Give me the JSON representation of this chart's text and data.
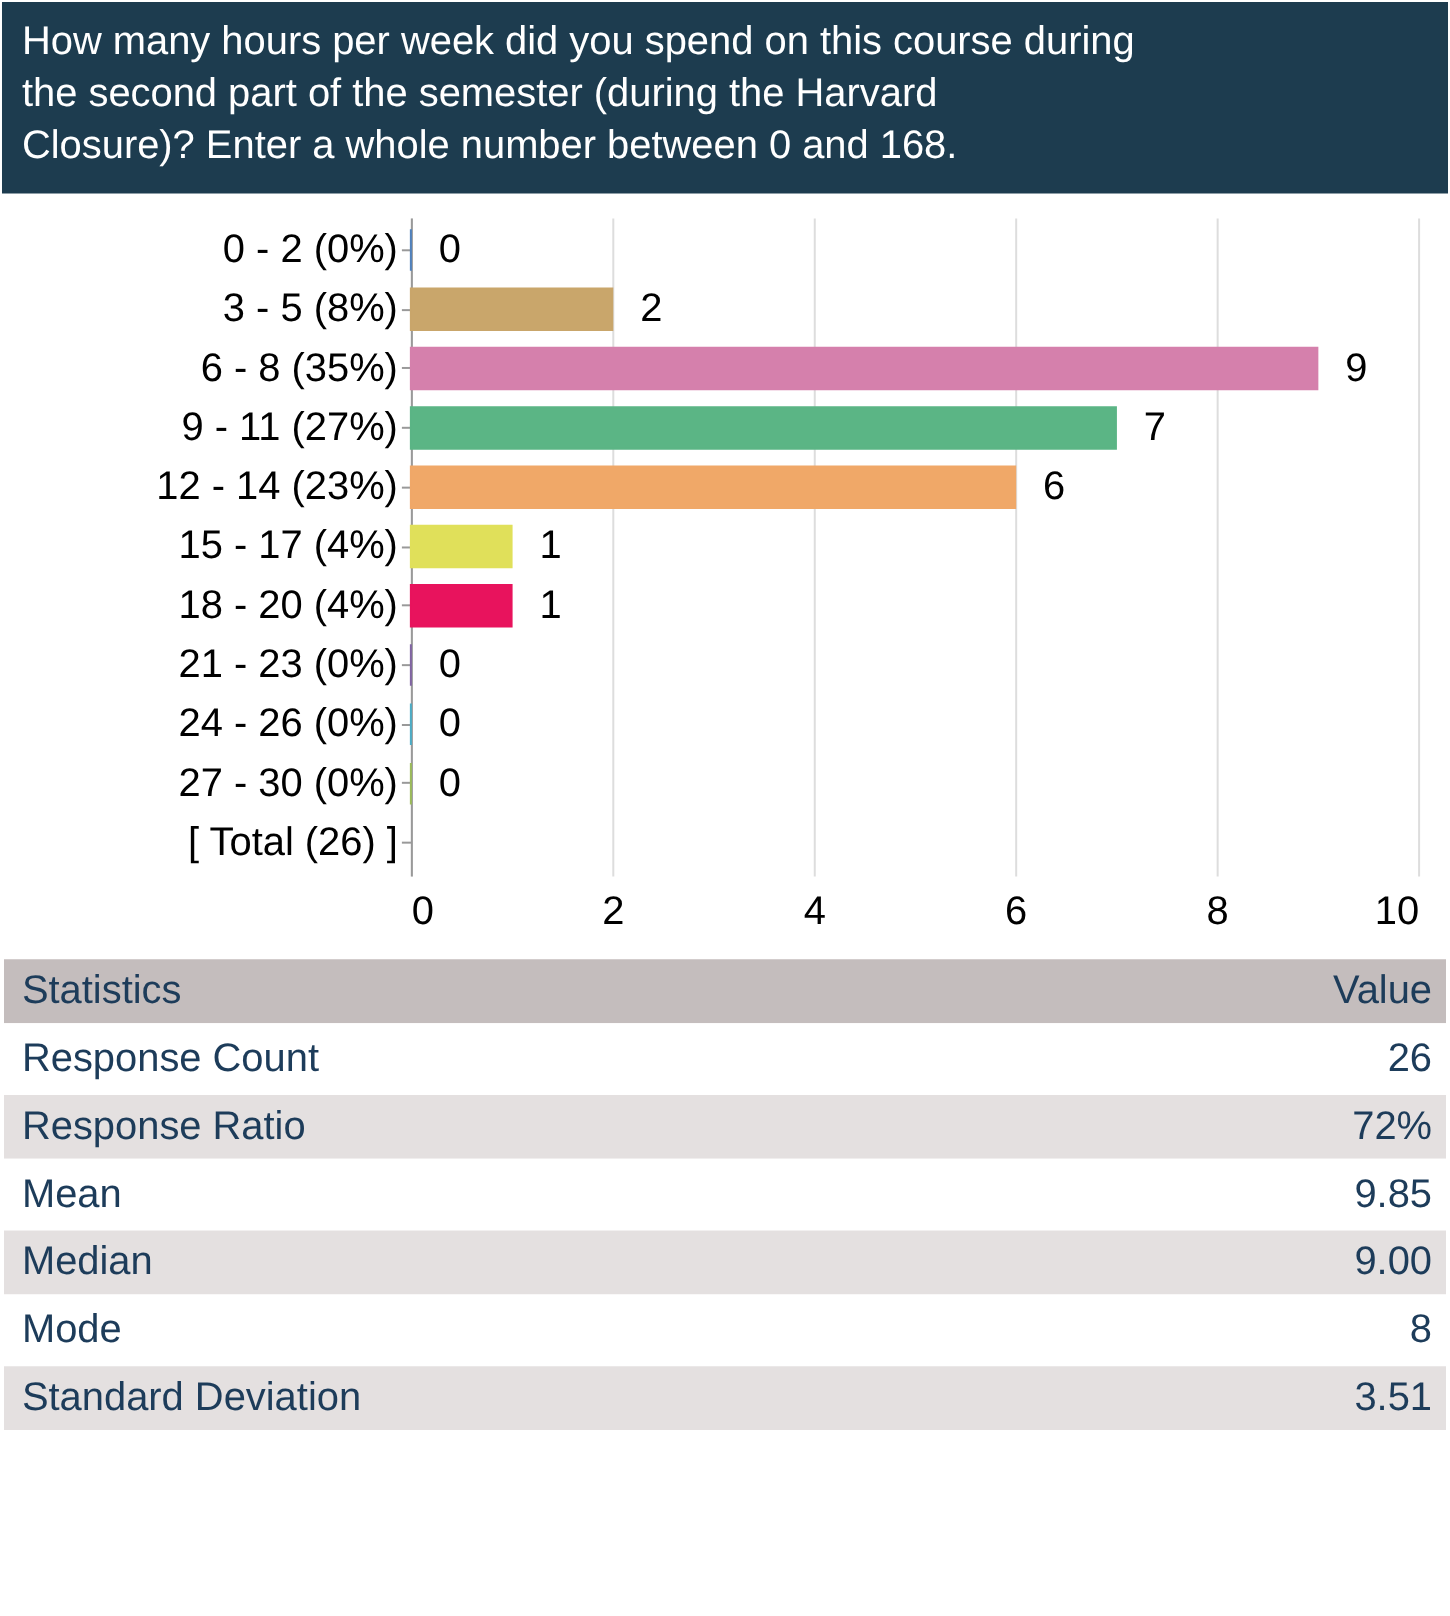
{
  "chart_data": [
    {
      "type": "bar",
      "title": "How many hours per week did you spend on this course during the second part of the semester (during the Harvard Closure)? Enter a whole number between 0 and 168.",
      "orientation": "horizontal",
      "categories": [
        "0 - 2 (0%)",
        "3 - 5 (8%)",
        "6 - 8 (35%)",
        "9 - 11 (27%)",
        "12 - 14 (23%)",
        "15 - 17 (4%)",
        "18 - 20 (4%)",
        "21 - 23 (0%)",
        "24 - 26 (0%)",
        "27 - 30 (0%)",
        "[ Total (26) ]"
      ],
      "values": [
        0,
        2,
        9,
        7,
        6,
        1,
        1,
        0,
        0,
        0,
        null
      ],
      "colors": [
        "#4f81bd",
        "#c9a66b",
        "#d580ac",
        "#5bb585",
        "#f0a868",
        "#e0e05a",
        "#e8135d",
        "#8064a2",
        "#4bacc6",
        "#9bbb59",
        "#999999"
      ],
      "xlim": [
        0,
        10
      ],
      "xticks": [
        0,
        2,
        4,
        6,
        8,
        10
      ],
      "grid": "x",
      "data_labels": true
    },
    {
      "type": "other",
      "xlabel": "Statistics",
      "ylabel": "Value",
      "categories": [
        "Response Count",
        "Response Ratio",
        "Mean",
        "Median",
        "Mode",
        "Standard Deviation"
      ],
      "value_labels": [
        "26",
        "72%",
        "9.85",
        "9.00",
        "8",
        "3.51"
      ]
    }
  ]
}
